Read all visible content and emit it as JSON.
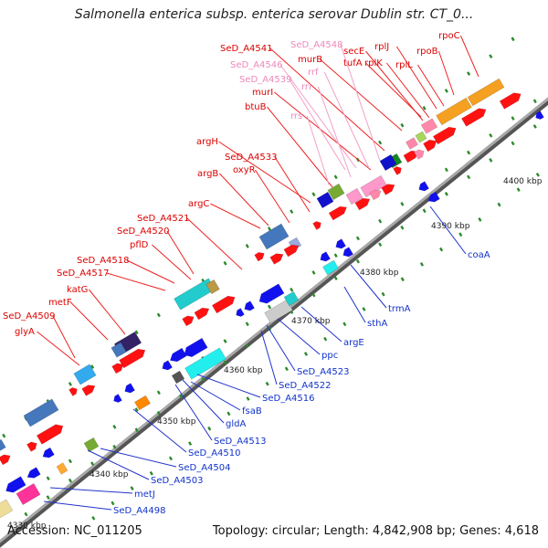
{
  "title": "Salmonella enterica subsp. enterica serovar Dublin str. CT_0...",
  "footer": {
    "accession": "Accession: NC_011205",
    "summary": "Topology: circular; Length: 4,842,908 bp; Genes: 4,618"
  },
  "colors": {
    "forward_label": "#dd0000",
    "rrna_label": "#ee88bb",
    "reverse_label": "#1133cc",
    "backbone": "#808080",
    "tick_dot": "#2a8a2a"
  },
  "kbp_ticks": [
    "4330 kbp",
    "4340 kbp",
    "4350 kbp",
    "4360 kbp",
    "4370 kbp",
    "4380 kbp",
    "4390 kbp",
    "4400 kbp"
  ],
  "forward_genes": [
    "rpoC",
    "rplJ",
    "rpoB",
    "secE",
    "rplK",
    "rplL",
    "murB",
    "tufA",
    "SeD_A4541",
    "murI",
    "btuB",
    "argH",
    "SeD_A4533",
    "oxyR",
    "argB",
    "argC",
    "SeD_A4521",
    "SeD_A4520",
    "pflD",
    "SeD_A4518",
    "SeD_A4517",
    "katG",
    "SeD_A4509",
    "metF",
    "glyA"
  ],
  "rrna_genes": [
    "SeD_A4548",
    "SeD_A4546",
    "rrf",
    "SeD_A4539",
    "rrl",
    "rrs"
  ],
  "reverse_genes": [
    "coaA",
    "trmA",
    "sthA",
    "argE",
    "ppc",
    "SeD_A4523",
    "SeD_A4522",
    "SeD_A4516",
    "fsaB",
    "SeD_A4513",
    "gldA",
    "SeD_A4510",
    "SeD_A4504",
    "SeD_A4503",
    "metJ",
    "SeD_A4498"
  ]
}
